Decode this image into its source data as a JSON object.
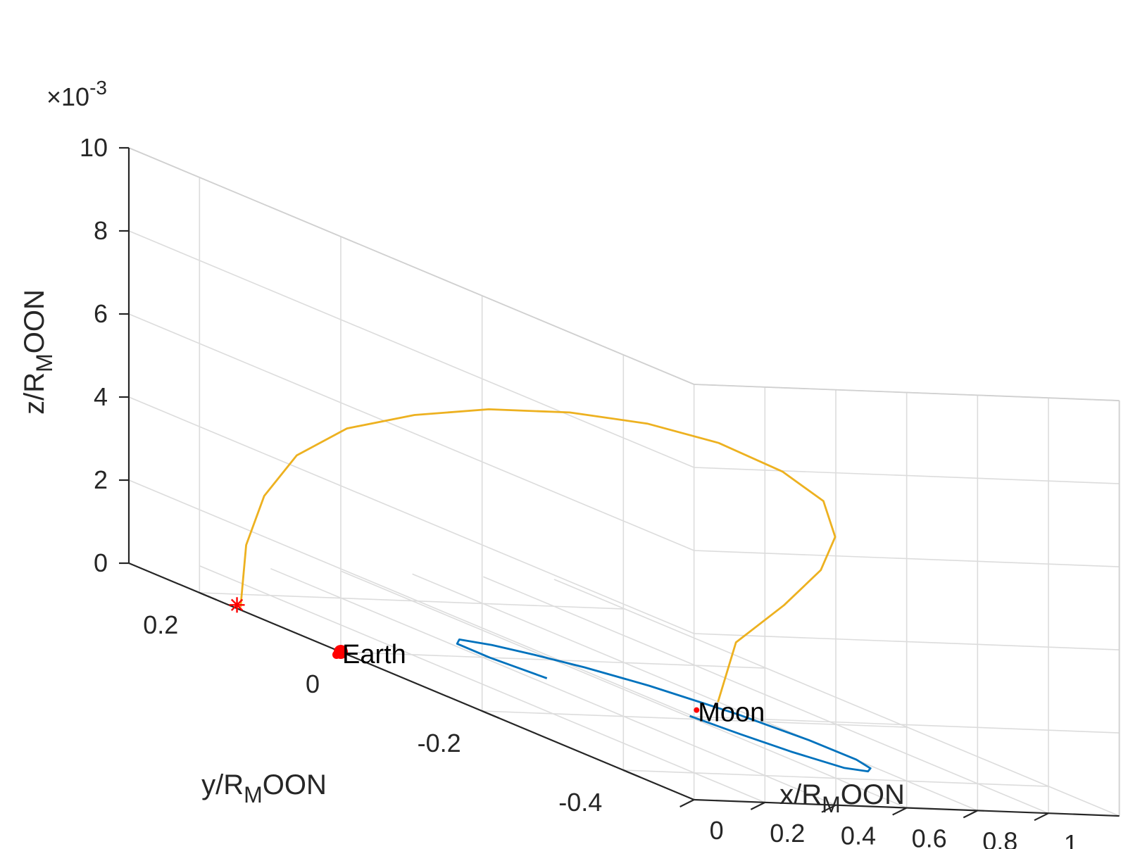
{
  "chart_data": {
    "type": "line",
    "projection": "3d",
    "axes": {
      "x": {
        "label_main": "x/R",
        "label_sub": "M",
        "label_tail": "OON",
        "lim": [
          0,
          1.2
        ],
        "ticks": [
          "0",
          "0.2",
          "0.4",
          "0.6",
          "0.8",
          "1"
        ]
      },
      "y": {
        "label_main": "y/R",
        "label_sub": "M",
        "label_tail": "OON",
        "lim": [
          -0.5,
          0.3
        ],
        "ticks": [
          "-0.4",
          "-0.2",
          "0",
          "0.2"
        ]
      },
      "z": {
        "label_main": "z/R",
        "label_sub": "M",
        "label_tail": "OON",
        "lim": [
          0,
          0.01
        ],
        "ticks": [
          "0",
          "2",
          "4",
          "6",
          "8",
          "10"
        ],
        "exponent_base": "×10",
        "exponent_power": "-3"
      }
    },
    "grid": true,
    "series": [
      {
        "color": "#EDB120",
        "points": [
          [
            0.02,
            0.152,
            0.0
          ],
          [
            0.012,
            0.14,
            0.00158
          ],
          [
            0.019,
            0.118,
            0.00292
          ],
          [
            0.045,
            0.085,
            0.00414
          ],
          [
            0.093,
            0.038,
            0.00514
          ],
          [
            0.162,
            -0.023,
            0.00592
          ],
          [
            0.244,
            -0.087,
            0.00654
          ],
          [
            0.333,
            -0.157,
            0.00699
          ],
          [
            0.42,
            -0.223,
            0.00722
          ],
          [
            0.514,
            -0.277,
            0.00717
          ],
          [
            0.62,
            -0.314,
            0.00678
          ],
          [
            0.716,
            -0.324,
            0.00617
          ],
          [
            0.795,
            -0.301,
            0.00517
          ],
          [
            0.83,
            -0.263,
            0.00411
          ],
          [
            0.844,
            -0.204,
            0.00285
          ],
          [
            0.82,
            -0.148,
            0.00155
          ],
          [
            0.799,
            -0.133,
            0.0
          ]
        ]
      },
      {
        "color": "#0072BD",
        "points": [
          [
            0.608,
            -0.189,
            0.0
          ],
          [
            0.63,
            -0.25,
            0.0
          ],
          [
            0.658,
            -0.307,
            0.0
          ],
          [
            0.702,
            -0.36,
            0.0
          ],
          [
            0.75,
            -0.37,
            0.0
          ],
          [
            0.781,
            -0.358,
            0.0
          ],
          [
            0.801,
            -0.328,
            0.0
          ],
          [
            0.799,
            -0.262,
            0.0
          ],
          [
            0.769,
            -0.175,
            0.0
          ],
          [
            0.706,
            -0.082,
            0.0
          ],
          [
            0.642,
            -0.023,
            0.0
          ],
          [
            0.579,
            0.017,
            0.0
          ],
          [
            0.52,
            0.047,
            0.0
          ],
          [
            0.46,
            0.063,
            0.0
          ],
          [
            0.422,
            0.047,
            0.0
          ],
          [
            0.42,
            0.0,
            0.0
          ],
          [
            0.444,
            -0.069,
            0.0
          ]
        ]
      }
    ],
    "markers": [
      {
        "label": "",
        "marker": "asterisk",
        "color": "#FF0000",
        "point": [
          0.026,
          0.16,
          0.0
        ]
      },
      {
        "label": "Earth",
        "marker": "dot",
        "color": "#FF0000",
        "point": [
          0.0,
          0.0,
          0.0
        ]
      },
      {
        "label": "Moon",
        "marker": "dot",
        "color": "#FF0000",
        "point": [
          0.673,
          -0.166,
          0.0
        ]
      }
    ]
  }
}
